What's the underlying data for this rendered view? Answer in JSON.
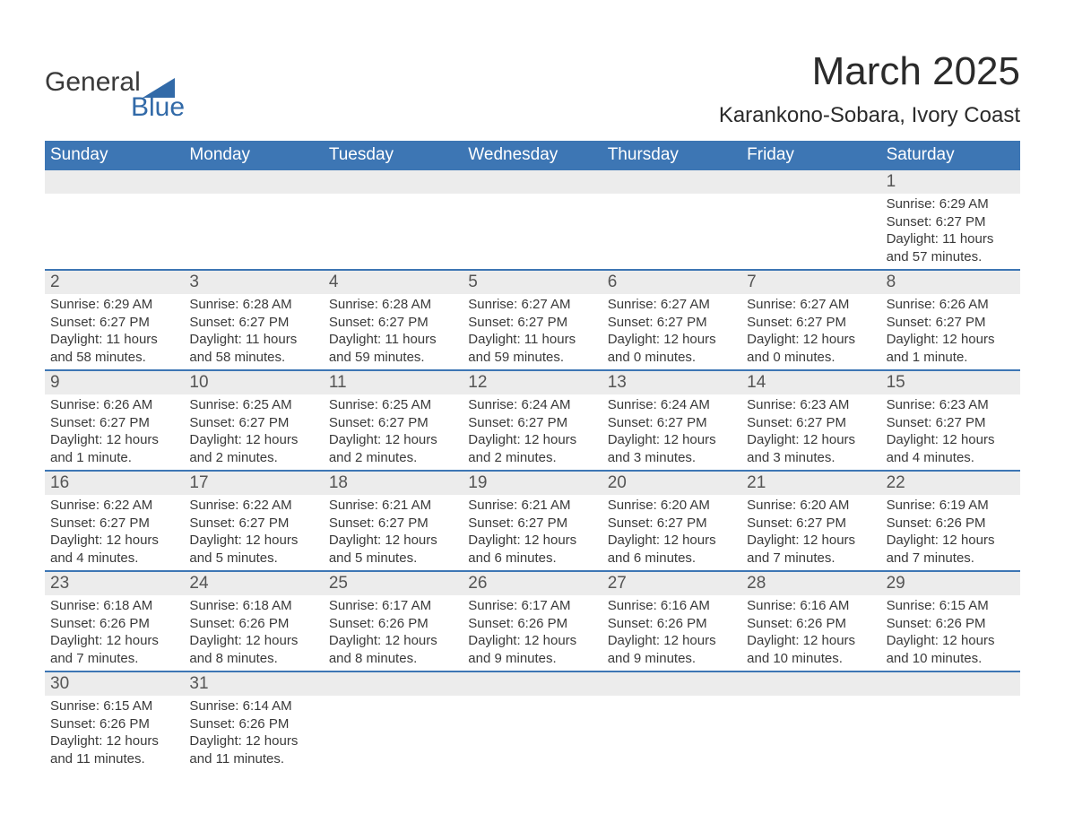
{
  "logo": {
    "word1": "General",
    "word2": "Blue"
  },
  "title": "March 2025",
  "location": "Karankono-Sobara, Ivory Coast",
  "colors": {
    "header_bg": "#3d76b4",
    "header_text": "#ffffff",
    "daynum_bg": "#ececec",
    "text": "#3a3a3a",
    "logo_blue": "#326aa8",
    "rule": "#3d76b4"
  },
  "typography": {
    "title_fontsize": 44,
    "location_fontsize": 24,
    "dow_fontsize": 19,
    "daynum_fontsize": 19,
    "body_fontsize": 15
  },
  "calendar": {
    "type": "table",
    "columns": [
      "Sunday",
      "Monday",
      "Tuesday",
      "Wednesday",
      "Thursday",
      "Friday",
      "Saturday"
    ],
    "weeks": [
      [
        {
          "day": "",
          "sunrise": "",
          "sunset": "",
          "daylight": ""
        },
        {
          "day": "",
          "sunrise": "",
          "sunset": "",
          "daylight": ""
        },
        {
          "day": "",
          "sunrise": "",
          "sunset": "",
          "daylight": ""
        },
        {
          "day": "",
          "sunrise": "",
          "sunset": "",
          "daylight": ""
        },
        {
          "day": "",
          "sunrise": "",
          "sunset": "",
          "daylight": ""
        },
        {
          "day": "",
          "sunrise": "",
          "sunset": "",
          "daylight": ""
        },
        {
          "day": "1",
          "sunrise": "Sunrise: 6:29 AM",
          "sunset": "Sunset: 6:27 PM",
          "daylight": "Daylight: 11 hours and 57 minutes."
        }
      ],
      [
        {
          "day": "2",
          "sunrise": "Sunrise: 6:29 AM",
          "sunset": "Sunset: 6:27 PM",
          "daylight": "Daylight: 11 hours and 58 minutes."
        },
        {
          "day": "3",
          "sunrise": "Sunrise: 6:28 AM",
          "sunset": "Sunset: 6:27 PM",
          "daylight": "Daylight: 11 hours and 58 minutes."
        },
        {
          "day": "4",
          "sunrise": "Sunrise: 6:28 AM",
          "sunset": "Sunset: 6:27 PM",
          "daylight": "Daylight: 11 hours and 59 minutes."
        },
        {
          "day": "5",
          "sunrise": "Sunrise: 6:27 AM",
          "sunset": "Sunset: 6:27 PM",
          "daylight": "Daylight: 11 hours and 59 minutes."
        },
        {
          "day": "6",
          "sunrise": "Sunrise: 6:27 AM",
          "sunset": "Sunset: 6:27 PM",
          "daylight": "Daylight: 12 hours and 0 minutes."
        },
        {
          "day": "7",
          "sunrise": "Sunrise: 6:27 AM",
          "sunset": "Sunset: 6:27 PM",
          "daylight": "Daylight: 12 hours and 0 minutes."
        },
        {
          "day": "8",
          "sunrise": "Sunrise: 6:26 AM",
          "sunset": "Sunset: 6:27 PM",
          "daylight": "Daylight: 12 hours and 1 minute."
        }
      ],
      [
        {
          "day": "9",
          "sunrise": "Sunrise: 6:26 AM",
          "sunset": "Sunset: 6:27 PM",
          "daylight": "Daylight: 12 hours and 1 minute."
        },
        {
          "day": "10",
          "sunrise": "Sunrise: 6:25 AM",
          "sunset": "Sunset: 6:27 PM",
          "daylight": "Daylight: 12 hours and 2 minutes."
        },
        {
          "day": "11",
          "sunrise": "Sunrise: 6:25 AM",
          "sunset": "Sunset: 6:27 PM",
          "daylight": "Daylight: 12 hours and 2 minutes."
        },
        {
          "day": "12",
          "sunrise": "Sunrise: 6:24 AM",
          "sunset": "Sunset: 6:27 PM",
          "daylight": "Daylight: 12 hours and 2 minutes."
        },
        {
          "day": "13",
          "sunrise": "Sunrise: 6:24 AM",
          "sunset": "Sunset: 6:27 PM",
          "daylight": "Daylight: 12 hours and 3 minutes."
        },
        {
          "day": "14",
          "sunrise": "Sunrise: 6:23 AM",
          "sunset": "Sunset: 6:27 PM",
          "daylight": "Daylight: 12 hours and 3 minutes."
        },
        {
          "day": "15",
          "sunrise": "Sunrise: 6:23 AM",
          "sunset": "Sunset: 6:27 PM",
          "daylight": "Daylight: 12 hours and 4 minutes."
        }
      ],
      [
        {
          "day": "16",
          "sunrise": "Sunrise: 6:22 AM",
          "sunset": "Sunset: 6:27 PM",
          "daylight": "Daylight: 12 hours and 4 minutes."
        },
        {
          "day": "17",
          "sunrise": "Sunrise: 6:22 AM",
          "sunset": "Sunset: 6:27 PM",
          "daylight": "Daylight: 12 hours and 5 minutes."
        },
        {
          "day": "18",
          "sunrise": "Sunrise: 6:21 AM",
          "sunset": "Sunset: 6:27 PM",
          "daylight": "Daylight: 12 hours and 5 minutes."
        },
        {
          "day": "19",
          "sunrise": "Sunrise: 6:21 AM",
          "sunset": "Sunset: 6:27 PM",
          "daylight": "Daylight: 12 hours and 6 minutes."
        },
        {
          "day": "20",
          "sunrise": "Sunrise: 6:20 AM",
          "sunset": "Sunset: 6:27 PM",
          "daylight": "Daylight: 12 hours and 6 minutes."
        },
        {
          "day": "21",
          "sunrise": "Sunrise: 6:20 AM",
          "sunset": "Sunset: 6:27 PM",
          "daylight": "Daylight: 12 hours and 7 minutes."
        },
        {
          "day": "22",
          "sunrise": "Sunrise: 6:19 AM",
          "sunset": "Sunset: 6:26 PM",
          "daylight": "Daylight: 12 hours and 7 minutes."
        }
      ],
      [
        {
          "day": "23",
          "sunrise": "Sunrise: 6:18 AM",
          "sunset": "Sunset: 6:26 PM",
          "daylight": "Daylight: 12 hours and 7 minutes."
        },
        {
          "day": "24",
          "sunrise": "Sunrise: 6:18 AM",
          "sunset": "Sunset: 6:26 PM",
          "daylight": "Daylight: 12 hours and 8 minutes."
        },
        {
          "day": "25",
          "sunrise": "Sunrise: 6:17 AM",
          "sunset": "Sunset: 6:26 PM",
          "daylight": "Daylight: 12 hours and 8 minutes."
        },
        {
          "day": "26",
          "sunrise": "Sunrise: 6:17 AM",
          "sunset": "Sunset: 6:26 PM",
          "daylight": "Daylight: 12 hours and 9 minutes."
        },
        {
          "day": "27",
          "sunrise": "Sunrise: 6:16 AM",
          "sunset": "Sunset: 6:26 PM",
          "daylight": "Daylight: 12 hours and 9 minutes."
        },
        {
          "day": "28",
          "sunrise": "Sunrise: 6:16 AM",
          "sunset": "Sunset: 6:26 PM",
          "daylight": "Daylight: 12 hours and 10 minutes."
        },
        {
          "day": "29",
          "sunrise": "Sunrise: 6:15 AM",
          "sunset": "Sunset: 6:26 PM",
          "daylight": "Daylight: 12 hours and 10 minutes."
        }
      ],
      [
        {
          "day": "30",
          "sunrise": "Sunrise: 6:15 AM",
          "sunset": "Sunset: 6:26 PM",
          "daylight": "Daylight: 12 hours and 11 minutes."
        },
        {
          "day": "31",
          "sunrise": "Sunrise: 6:14 AM",
          "sunset": "Sunset: 6:26 PM",
          "daylight": "Daylight: 12 hours and 11 minutes."
        },
        {
          "day": "",
          "sunrise": "",
          "sunset": "",
          "daylight": ""
        },
        {
          "day": "",
          "sunrise": "",
          "sunset": "",
          "daylight": ""
        },
        {
          "day": "",
          "sunrise": "",
          "sunset": "",
          "daylight": ""
        },
        {
          "day": "",
          "sunrise": "",
          "sunset": "",
          "daylight": ""
        },
        {
          "day": "",
          "sunrise": "",
          "sunset": "",
          "daylight": ""
        }
      ]
    ]
  }
}
